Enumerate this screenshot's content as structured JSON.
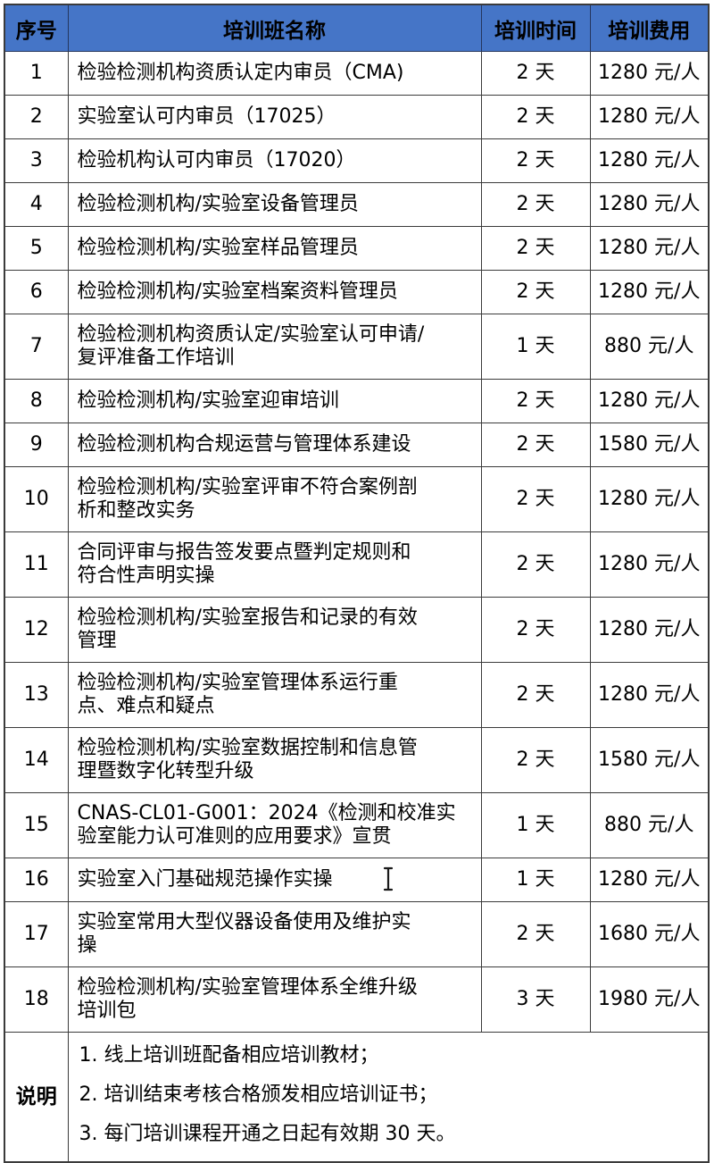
{
  "colors": {
    "header_bg": "#4575C7",
    "header_border": "#24365E",
    "grid_border": "#3B3B3B",
    "text": "#000000"
  },
  "table": {
    "headers": [
      "序号",
      "培训班名称",
      "培训时间",
      "培训费用"
    ],
    "rows": [
      {
        "no": "1",
        "name": "检验检测机构资质认定内审员（CMA)",
        "duration": "2 天",
        "fee": "1280 元/人"
      },
      {
        "no": "2",
        "name": "实验室认可内审员（17025）",
        "duration": "2 天",
        "fee": "1280 元/人"
      },
      {
        "no": "3",
        "name": "检验机构认可内审员（17020）",
        "duration": "2 天",
        "fee": "1280 元/人"
      },
      {
        "no": "4",
        "name": "检验检测机构/实验室设备管理员",
        "duration": "2 天",
        "fee": "1280 元/人"
      },
      {
        "no": "5",
        "name": "检验检测机构/实验室样品管理员",
        "duration": "2 天",
        "fee": "1280 元/人"
      },
      {
        "no": "6",
        "name": "检验检测机构/实验室档案资料管理员",
        "duration": "2 天",
        "fee": "1280 元/人"
      },
      {
        "no": "7",
        "name": "检验检测机构资质认定/实验室认可申请/\n复评准备工作培训",
        "duration": "1 天",
        "fee": "880 元/人"
      },
      {
        "no": "8",
        "name": "检验检测机构/实验室迎审培训",
        "duration": "2 天",
        "fee": "1280 元/人"
      },
      {
        "no": "9",
        "name": "检验检测机构合规运营与管理体系建设",
        "duration": "2 天",
        "fee": "1580 元/人"
      },
      {
        "no": "10",
        "name": "检验检测机构/实验室评审不符合案例剖\n析和整改实务",
        "duration": "2 天",
        "fee": "1280 元/人"
      },
      {
        "no": "11",
        "name": "合同评审与报告签发要点暨判定规则和\n符合性声明实操",
        "duration": "2 天",
        "fee": "1280 元/人"
      },
      {
        "no": "12",
        "name": "检验检测机构/实验室报告和记录的有效\n管理",
        "duration": "2 天",
        "fee": "1280 元/人"
      },
      {
        "no": "13",
        "name": "检验检测机构/实验室管理体系运行重\n点、难点和疑点",
        "duration": "2 天",
        "fee": "1280 元/人"
      },
      {
        "no": "14",
        "name": "检验检测机构/实验室数据控制和信息管\n理暨数字化转型升级",
        "duration": "2 天",
        "fee": "1580 元/人"
      },
      {
        "no": "15",
        "name": "CNAS-CL01-G001：2024《检测和校准实\n验室能力认可准则的应用要求》宣贯",
        "duration": "1 天",
        "fee": "880 元/人"
      },
      {
        "no": "16",
        "name": "实验室入门基础规范操作实操",
        "duration": "1 天",
        "fee": "1280 元/人"
      },
      {
        "no": "17",
        "name": "实验室常用大型仪器设备使用及维护实\n操",
        "duration": "2 天",
        "fee": "1680 元/人"
      },
      {
        "no": "18",
        "name": "检验检测机构/实验室管理体系全维升级\n培训包",
        "duration": "3 天",
        "fee": "1980 元/人"
      }
    ]
  },
  "notes": {
    "label": "说明",
    "items": [
      "1. 线上培训班配备相应培训教材；",
      "2. 培训结束考核合格颁发相应培训证书；",
      "3. 每门培训课程开通之日起有效期 30 天。"
    ]
  },
  "cursor": {
    "type": "text-i-beam"
  }
}
